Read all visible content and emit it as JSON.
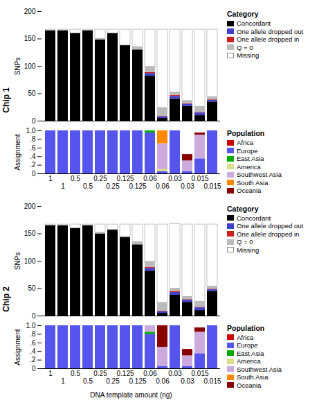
{
  "chart_data": [
    {
      "type": "bar",
      "stacked": true,
      "title": "Chip 1",
      "tick_labels": "y",
      "categories": [
        "1",
        "1",
        "0.5",
        "0.5",
        "0.25",
        "0.25",
        "0.125",
        "0.125",
        "0.06",
        "0.06",
        "0.03",
        "0.03",
        "0.015",
        "0.015"
      ],
      "ylabel": "SNPs",
      "ylim": [
        0,
        200
      ],
      "yticks": [
        0,
        50,
        100,
        150,
        200
      ],
      "legend": "right",
      "legend_title": "Category",
      "series": [
        {
          "name": "Concordant",
          "color": "#000000",
          "values": [
            165,
            165,
            160,
            165,
            148,
            160,
            138,
            130,
            82,
            5,
            40,
            27,
            10,
            35
          ]
        },
        {
          "name": "One allele dropped out",
          "color": "#4040cc",
          "values": [
            0,
            0,
            0,
            0,
            0,
            0,
            0,
            0,
            5,
            3,
            5,
            4,
            5,
            3
          ]
        },
        {
          "name": "One allele dropped in",
          "color": "#cc2020",
          "values": [
            0,
            0,
            0,
            0,
            0,
            0,
            0,
            0,
            2,
            1,
            2,
            1,
            1,
            1
          ]
        },
        {
          "name": "Q = 0",
          "color": "#bbbbbb",
          "values": [
            0,
            0,
            0,
            0,
            2,
            0,
            0,
            5,
            10,
            15,
            5,
            5,
            10,
            5
          ]
        },
        {
          "name": "Missing",
          "color": "#ffffff",
          "values": [
            2,
            2,
            7,
            2,
            17,
            7,
            29,
            32,
            68,
            143,
            115,
            130,
            141,
            123
          ]
        }
      ]
    },
    {
      "type": "bar",
      "stacked": true,
      "categories": [
        "1",
        "1",
        "0.5",
        "0.5",
        "0.25",
        "0.25",
        "0.125",
        "0.125",
        "0.06",
        "0.06",
        "0.03",
        "0.03",
        "0.015",
        "0.015"
      ],
      "ylabel": "Assignment",
      "ylim": [
        0,
        1.0
      ],
      "yticks": [
        0,
        {
          "value": 0.2,
          "label": ".2"
        },
        {
          "value": 0.4,
          "label": ".4"
        },
        {
          "value": 0.6,
          "label": ".6"
        },
        {
          "value": 0.8,
          "label": ".8"
        },
        {
          "value": 1.0,
          "label": "1.0"
        }
      ],
      "legend": "right",
      "legend_title": "Population",
      "series": [
        {
          "name": "Africa",
          "color": "#cc0000",
          "values": [
            0,
            0,
            0,
            0,
            0,
            0,
            0,
            0,
            0,
            0,
            0,
            0,
            0,
            0
          ]
        },
        {
          "name": "Europe",
          "color": "#5555ee",
          "values": [
            1.0,
            1.0,
            1.0,
            1.0,
            1.0,
            1.0,
            1.0,
            1.0,
            0.95,
            0.05,
            1.0,
            0.05,
            0.35,
            1.0
          ]
        },
        {
          "name": "East Asia",
          "color": "#00aa00",
          "values": [
            0,
            0,
            0,
            0,
            0,
            0,
            0,
            0,
            0.05,
            0.0,
            0,
            0,
            0,
            0
          ]
        },
        {
          "name": "America",
          "color": "#dddd88",
          "values": [
            0,
            0,
            0,
            0,
            0,
            0,
            0,
            0,
            0,
            0.05,
            0,
            0,
            0,
            0
          ]
        },
        {
          "name": "Southwest Asia",
          "color": "#ccaadd",
          "values": [
            0,
            0,
            0,
            0,
            0,
            0,
            0,
            0,
            0,
            0.6,
            0,
            0.25,
            0.55,
            0
          ]
        },
        {
          "name": "South Asia",
          "color": "#ff8800",
          "values": [
            0,
            0,
            0,
            0,
            0,
            0,
            0,
            0,
            0,
            0.3,
            0,
            0,
            0,
            0
          ]
        },
        {
          "name": "Oceania",
          "color": "#880000",
          "values": [
            0,
            0,
            0,
            0,
            0,
            0,
            0,
            0,
            0,
            0,
            0,
            0.15,
            0.05,
            0
          ]
        }
      ]
    },
    {
      "type": "bar",
      "stacked": true,
      "title": "Chip 2",
      "tick_labels": "y",
      "categories": [
        "1",
        "1",
        "0.5",
        "0.5",
        "0.25",
        "0.25",
        "0.125",
        "0.125",
        "0.06",
        "0.06",
        "0.03",
        "0.03",
        "0.015",
        "0.015"
      ],
      "ylabel": "SNPs",
      "ylim": [
        0,
        200
      ],
      "yticks": [
        0,
        50,
        100,
        150,
        200
      ],
      "legend": "right",
      "legend_title": "Category",
      "series": [
        {
          "name": "Concordant",
          "color": "#000000",
          "values": [
            165,
            165,
            160,
            165,
            150,
            157,
            143,
            130,
            82,
            5,
            38,
            25,
            10,
            45
          ]
        },
        {
          "name": "One allele dropped out",
          "color": "#4040cc",
          "values": [
            0,
            0,
            0,
            0,
            0,
            0,
            0,
            0,
            5,
            3,
            5,
            4,
            5,
            3
          ]
        },
        {
          "name": "One allele dropped in",
          "color": "#cc2020",
          "values": [
            0,
            0,
            0,
            0,
            0,
            0,
            0,
            0,
            2,
            1,
            2,
            1,
            1,
            1
          ]
        },
        {
          "name": "Q = 0",
          "color": "#bbbbbb",
          "values": [
            0,
            0,
            0,
            0,
            2,
            0,
            2,
            5,
            10,
            15,
            5,
            5,
            10,
            5
          ]
        },
        {
          "name": "Missing",
          "color": "#ffffff",
          "values": [
            2,
            2,
            7,
            2,
            15,
            10,
            22,
            32,
            68,
            143,
            118,
            132,
            141,
            113
          ]
        }
      ]
    },
    {
      "type": "bar",
      "stacked": true,
      "categories": [
        "1",
        "1",
        "0.5",
        "0.5",
        "0.25",
        "0.25",
        "0.125",
        "0.125",
        "0.06",
        "0.06",
        "0.03",
        "0.03",
        "0.015",
        "0.015"
      ],
      "xlabel": "DNA template amount (ng)",
      "ylabel": "Assignment",
      "ylim": [
        0,
        1.0
      ],
      "yticks": [
        0,
        {
          "value": 0.2,
          "label": ".2"
        },
        {
          "value": 0.4,
          "label": ".4"
        },
        {
          "value": 0.6,
          "label": ".6"
        },
        {
          "value": 0.8,
          "label": ".8"
        },
        {
          "value": 1.0,
          "label": "1.0"
        }
      ],
      "legend": "right",
      "legend_title": "Population",
      "series": [
        {
          "name": "Africa",
          "color": "#cc0000",
          "values": [
            0,
            0,
            0,
            0,
            0,
            0,
            0,
            0,
            0,
            0,
            0,
            0,
            0,
            0
          ]
        },
        {
          "name": "Europe",
          "color": "#5555ee",
          "values": [
            1.0,
            1.0,
            1.0,
            1.0,
            1.0,
            1.0,
            1.0,
            1.0,
            0.8,
            0.05,
            1.0,
            0.05,
            0.35,
            1.0
          ]
        },
        {
          "name": "East Asia",
          "color": "#00aa00",
          "values": [
            0,
            0,
            0,
            0,
            0,
            0,
            0,
            0,
            0.05,
            0.0,
            0,
            0,
            0,
            0
          ]
        },
        {
          "name": "America",
          "color": "#dddd88",
          "values": [
            0,
            0,
            0,
            0,
            0,
            0,
            0,
            0,
            0,
            0,
            0,
            0,
            0,
            0
          ]
        },
        {
          "name": "Southwest Asia",
          "color": "#ccaadd",
          "values": [
            0,
            0,
            0,
            0,
            0,
            0,
            0,
            0,
            0.15,
            0.45,
            0,
            0.25,
            0.5,
            0
          ]
        },
        {
          "name": "South Asia",
          "color": "#ff8800",
          "values": [
            0,
            0,
            0,
            0,
            0,
            0,
            0,
            0,
            0,
            0,
            0,
            0,
            0,
            0
          ]
        },
        {
          "name": "Oceania",
          "color": "#880000",
          "values": [
            0,
            0,
            0,
            0,
            0,
            0,
            0,
            0,
            0,
            0.5,
            0,
            0.15,
            0.1,
            0
          ]
        }
      ]
    }
  ]
}
